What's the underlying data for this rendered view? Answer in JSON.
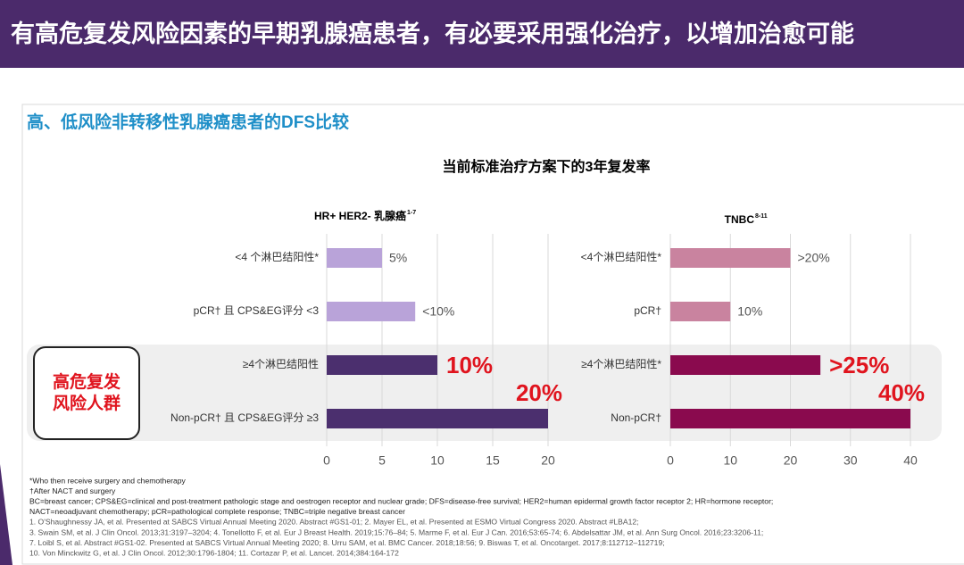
{
  "header": {
    "title": "有高危复发风险因素的早期乳腺癌患者，有必要采用强化治疗，以增加治愈可能"
  },
  "section_title": "高、低风险非转移性乳腺癌患者的DFS比较",
  "figure_title": "当前标准治疗方案下的3年复发率",
  "highlight_label": [
    "高危复发",
    "风险人群"
  ],
  "footnotes": [
    "*Who then receive surgery and chemotherapy",
    "†After NACT and surgery",
    "BC=breast cancer; CPS&EG=clinical and post-treatment pathologic stage and oestrogen receptor and nuclear grade; DFS=disease-free survival; HER2=human epidermal growth factor receptor 2; HR=hormone receptor;",
    "NACT=neoadjuvant chemotherapy; pCR=pathological complete response; TNBC=triple negative breast cancer",
    "1. O'Shaughnessy JA, et al. Presented at SABCS Virtual Annual Meeting 2020. Abstract #GS1-01; 2. Mayer EL, et al. Presented at ESMO Virtual Congress 2020. Abstract #LBA12;",
    "3. Swain SM, et al. J Clin Oncol. 2013;31:3197–3204; 4. Tonellotto F, et al. Eur J Breast Health. 2019;15:76–84; 5. Marme F, et al. Eur J Can. 2016;53:65-74; 6. Abdelsattar JM, et al. Ann Surg Oncol. 2016;23:3206-11;",
    "7. Loibl S, et al. Abstract #GS1-02. Presented at SABCS Virtual Annual Meeting 2020; 8. Urru SAM, et al. BMC Cancer. 2018;18:56; 9. Biswas T, et al. Oncotarget. 2017;8:112712–112719;",
    "10. Von Minckwitz G, et al. J Clin Oncol. 2012;30:1796-1804; 11. Cortazar P, et al. Lancet. 2014;384:164-172"
  ],
  "chart_data": [
    {
      "type": "bar",
      "orientation": "horizontal",
      "title": "HR+ HER2- 乳腺癌",
      "title_superscript": "1-7",
      "categories": [
        "<4 个淋巴结阳性*",
        "pCR† 且 CPS&EG评分 <3",
        "≥4个淋巴结阳性",
        "Non-pCR† 且 CPS&EG评分 ≥3"
      ],
      "values": [
        5,
        8,
        10,
        20
      ],
      "value_labels": [
        "5%",
        "<10%",
        "10%",
        "20%"
      ],
      "colors": [
        "#b9a3d9",
        "#b9a3d9",
        "#4b2f6e",
        "#4b2f6e"
      ],
      "xlim": [
        0,
        20
      ],
      "xticks": [
        0,
        5,
        10,
        15,
        20
      ],
      "grid": true
    },
    {
      "type": "bar",
      "orientation": "horizontal",
      "title": "TNBC",
      "title_superscript": "8-11",
      "categories": [
        "<4个淋巴结阳性*",
        "pCR†",
        "≥4个淋巴结阳性*",
        "Non-pCR†"
      ],
      "values": [
        20,
        10,
        25,
        40
      ],
      "value_labels": [
        ">20%",
        "10%",
        ">25%",
        "40%"
      ],
      "colors": [
        "#c9839f",
        "#c9839f",
        "#8a0a4e",
        "#8a0a4e"
      ],
      "xlim": [
        0,
        40
      ],
      "xticks": [
        0,
        10,
        20,
        30,
        40
      ],
      "grid": true
    }
  ]
}
